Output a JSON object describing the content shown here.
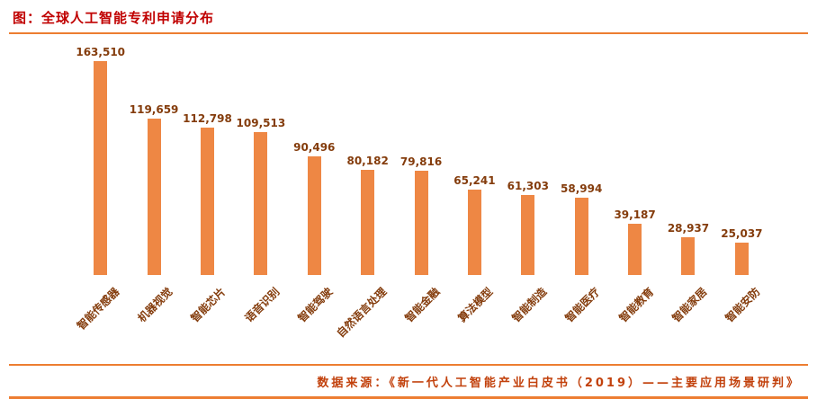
{
  "header": {
    "title": "图：全球人工智能专利申请分布"
  },
  "footer": {
    "source": "数据来源：《新一代人工智能产业白皮书（2019）——主要应用场景研判》"
  },
  "colors": {
    "title": "#C00000",
    "bar": "#EE8744",
    "data_label": "#843C0C",
    "axis_label": "#843C0C",
    "rule": "#ED7D31",
    "footer_text": "#C2410C",
    "background": "#FFFFFF"
  },
  "chart_data": {
    "type": "bar",
    "title": "图：全球人工智能专利申请分布",
    "categories": [
      "智能传感器",
      "机器视觉",
      "智能芯片",
      "语音识别",
      "智能驾驶",
      "自然语言处理",
      "智能金融",
      "算法模型",
      "智能制造",
      "智能医疗",
      "智能教育",
      "智能家居",
      "智能安防"
    ],
    "values": [
      163510,
      119659,
      112798,
      109513,
      90496,
      80182,
      79816,
      65241,
      61303,
      58994,
      39187,
      28937,
      25037
    ],
    "value_labels": [
      "163,510",
      "119,659",
      "112,798",
      "109,513",
      "90,496",
      "80,182",
      "79,816",
      "65,241",
      "61,303",
      "58,994",
      "39,187",
      "28,937",
      "25,037"
    ],
    "xlabel": "",
    "ylabel": "",
    "ylim": [
      0,
      163510
    ],
    "grid": false,
    "legend": "none",
    "data_labels": true,
    "bar_color": "#EE8744",
    "category_label_rotation_deg": -45
  }
}
